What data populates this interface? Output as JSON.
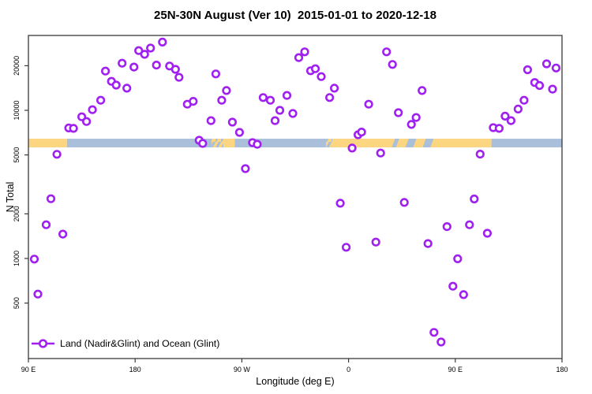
{
  "chart_data": {
    "type": "scatter",
    "title": "25N-30N August (Ver 10)  2015-01-01 to 2020-12-18",
    "xlabel": "Longitude (deg E)",
    "ylabel": "N Total",
    "legend": {
      "label": "Land (Nadir&Glint) and Ocean (Glint)",
      "marker": "open-circle-on-line"
    },
    "colors": {
      "point": "#A020F0",
      "land_band": "#FCD581",
      "ocean_band": "#A9BFDA",
      "axis": "#3a3a3a"
    },
    "x_axis": {
      "min": 90,
      "max": 540,
      "note": "longitude wraps: 90E eastward around globe to 180",
      "ticks": [
        {
          "pos": 90,
          "label": "90 E"
        },
        {
          "pos": 180,
          "label": "180"
        },
        {
          "pos": 270,
          "label": "90 W"
        },
        {
          "pos": 360,
          "label": "0"
        },
        {
          "pos": 450,
          "label": "90 E"
        },
        {
          "pos": 540,
          "label": "180"
        }
      ]
    },
    "y_axis": {
      "scale": "log10",
      "min": 210,
      "max": 33000,
      "ticks": [
        500,
        1000,
        2000,
        5000,
        10000,
        20000
      ]
    },
    "surface_band": {
      "value_top": 6430,
      "value_bottom": 5620,
      "segments": [
        {
          "from": 90,
          "to": 122.5,
          "type": "land"
        },
        {
          "from": 122.5,
          "to": 244.5,
          "type": "ocean"
        },
        {
          "from": 244.5,
          "to": 254.5,
          "type": "mix"
        },
        {
          "from": 254.5,
          "to": 264,
          "type": "land"
        },
        {
          "from": 264,
          "to": 341,
          "type": "ocean"
        },
        {
          "from": 341,
          "to": 346.5,
          "type": "mix"
        },
        {
          "from": 346.5,
          "to": 480.5,
          "type": "land"
        },
        {
          "from": 480.5,
          "to": 540,
          "type": "ocean"
        }
      ],
      "ocean_streaks_in_land": [
        {
          "from": 396.5,
          "to": 400
        },
        {
          "from": 408,
          "to": 414.5
        },
        {
          "from": 422.5,
          "to": 429
        }
      ]
    },
    "points": [
      [
        95,
        990
      ],
      [
        98,
        575
      ],
      [
        105,
        1690
      ],
      [
        109,
        2530
      ],
      [
        114,
        5050
      ],
      [
        119,
        1460
      ],
      [
        124,
        7600
      ],
      [
        128,
        7550
      ],
      [
        135,
        9050
      ],
      [
        139,
        8400
      ],
      [
        144,
        10100
      ],
      [
        151,
        11700
      ],
      [
        155,
        18400
      ],
      [
        160,
        15700
      ],
      [
        164,
        14800
      ],
      [
        169,
        20800
      ],
      [
        173,
        14100
      ],
      [
        179,
        19600
      ],
      [
        183,
        25300
      ],
      [
        188,
        23900
      ],
      [
        193,
        26300
      ],
      [
        198,
        20200
      ],
      [
        203,
        28900
      ],
      [
        209,
        19900
      ],
      [
        214,
        18900
      ],
      [
        217,
        16700
      ],
      [
        224,
        11000
      ],
      [
        229,
        11500
      ],
      [
        234,
        6280
      ],
      [
        237,
        5980
      ],
      [
        244,
        8520
      ],
      [
        248,
        17600
      ],
      [
        253,
        11700
      ],
      [
        257,
        13600
      ],
      [
        262,
        8320
      ],
      [
        268,
        7100
      ],
      [
        273,
        4040
      ],
      [
        279,
        6050
      ],
      [
        283,
        5900
      ],
      [
        288,
        12200
      ],
      [
        294,
        11700
      ],
      [
        298,
        8520
      ],
      [
        302,
        10000
      ],
      [
        308,
        12600
      ],
      [
        313,
        9520
      ],
      [
        318,
        22700
      ],
      [
        323,
        24800
      ],
      [
        328,
        18500
      ],
      [
        332,
        19100
      ],
      [
        337,
        16900
      ],
      [
        344,
        12200
      ],
      [
        348,
        14100
      ],
      [
        353,
        2360
      ],
      [
        358,
        1190
      ],
      [
        363,
        5560
      ],
      [
        368,
        6840
      ],
      [
        371,
        7130
      ],
      [
        377,
        11000
      ],
      [
        383,
        1290
      ],
      [
        387,
        5150
      ],
      [
        392,
        24800
      ],
      [
        397,
        20400
      ],
      [
        402,
        9640
      ],
      [
        407,
        2390
      ],
      [
        413,
        8030
      ],
      [
        417,
        8940
      ],
      [
        422,
        13600
      ],
      [
        427,
        1260
      ],
      [
        432,
        317
      ],
      [
        438,
        273
      ],
      [
        443,
        1640
      ],
      [
        448,
        650
      ],
      [
        452,
        995
      ],
      [
        457,
        570
      ],
      [
        462,
        1690
      ],
      [
        466,
        2520
      ],
      [
        471,
        5060
      ],
      [
        477,
        1480
      ],
      [
        482,
        7640
      ],
      [
        487,
        7550
      ],
      [
        492,
        9130
      ],
      [
        497,
        8520
      ],
      [
        503,
        10200
      ],
      [
        508,
        11700
      ],
      [
        511,
        18800
      ],
      [
        517,
        15400
      ],
      [
        521,
        14700
      ],
      [
        527,
        20600
      ],
      [
        532,
        13900
      ],
      [
        535,
        19300
      ]
    ]
  }
}
